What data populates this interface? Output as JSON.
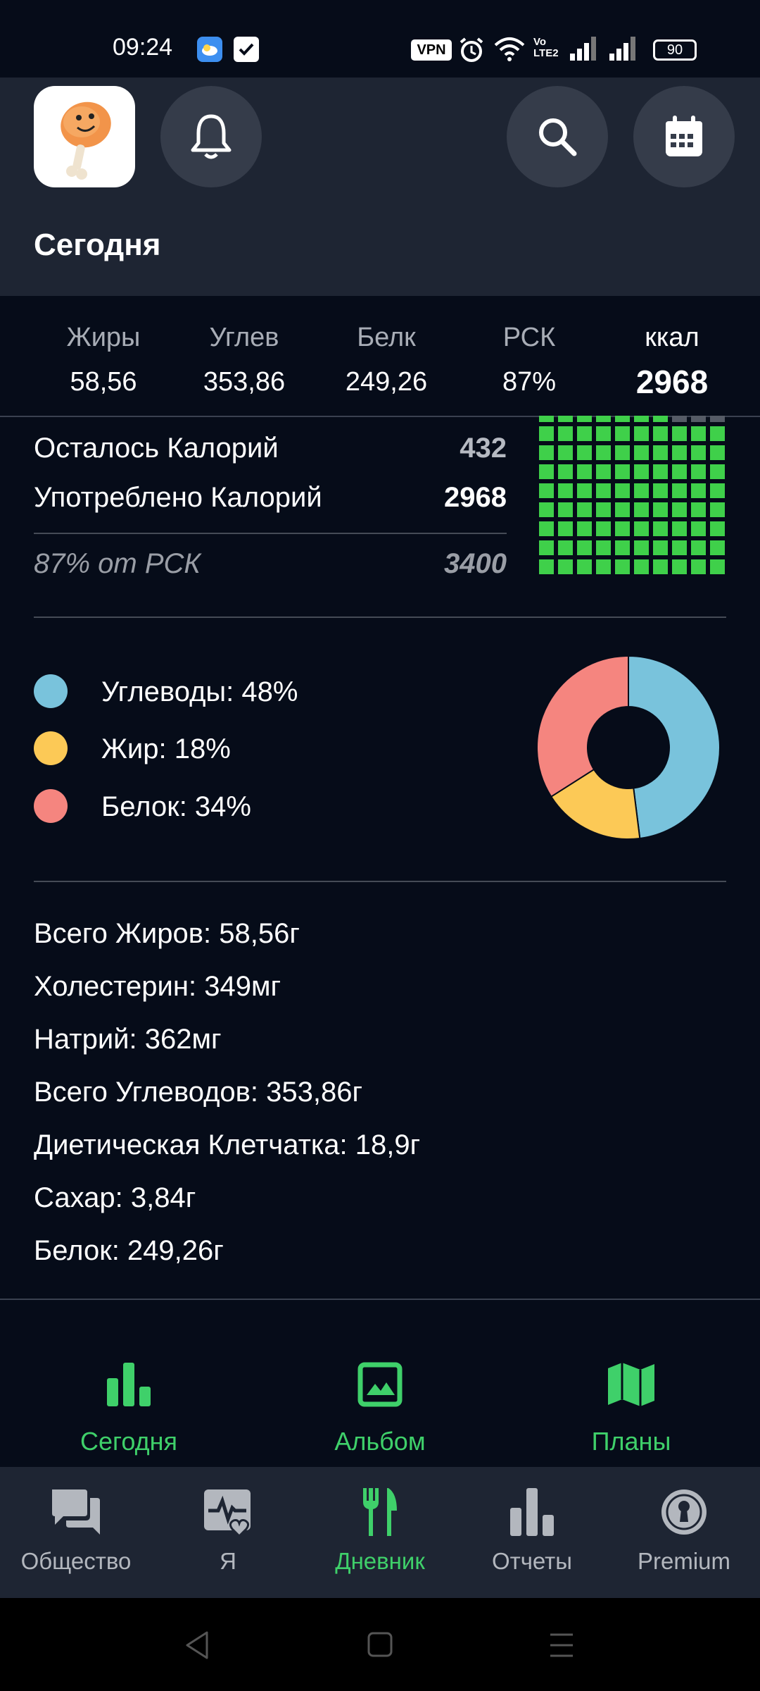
{
  "status_bar": {
    "time": "09:24",
    "vpn": "VPN",
    "battery": "90"
  },
  "header": {
    "title": "Сегодня"
  },
  "summary": {
    "columns": [
      {
        "label": "Жиры",
        "value": "58,56"
      },
      {
        "label": "Углев",
        "value": "353,86"
      },
      {
        "label": "Белк",
        "value": "249,26"
      },
      {
        "label": "РСК",
        "value": "87%"
      },
      {
        "label": "ккал",
        "value": "2968"
      }
    ]
  },
  "calories": {
    "remaining_label": "Осталось Калорий",
    "remaining_value": "432",
    "consumed_label": "Употреблено Калорий",
    "consumed_value": "2968",
    "rsk_label": "87% от РСК",
    "rsk_value": "3400",
    "grid_fill_fraction": 0.87
  },
  "chart_data": {
    "type": "pie",
    "categories": [
      "Углеводы",
      "Жир",
      "Белок"
    ],
    "values": [
      48,
      18,
      34
    ],
    "colors": [
      "#79c3dc",
      "#fcc956",
      "#f5857f"
    ]
  },
  "legend": [
    {
      "text": "Углеводы: 48%",
      "color": "#79c3dc"
    },
    {
      "text": "Жир: 18%",
      "color": "#fcc956"
    },
    {
      "text": "Белок: 34%",
      "color": "#f5857f"
    }
  ],
  "nutrients": [
    "Всего Жиров: 58,56г",
    "Холестерин: 349мг",
    "Натрий: 362мг",
    "Всего Углеводов: 353,86г",
    "Диетическая Клетчатка: 18,9г",
    "Сахар: 3,84г",
    "Белок: 249,26г"
  ],
  "sub_tabs": [
    {
      "label": "Сегодня",
      "icon": "bar-chart-icon"
    },
    {
      "label": "Альбом",
      "icon": "image-icon"
    },
    {
      "label": "Планы",
      "icon": "map-icon"
    }
  ],
  "bottom_nav": [
    {
      "label": "Общество",
      "icon": "chat-icon"
    },
    {
      "label": "Я",
      "icon": "health-icon"
    },
    {
      "label": "Дневник",
      "icon": "fork-knife-icon",
      "active": true
    },
    {
      "label": "Отчеты",
      "icon": "bar-chart-icon"
    },
    {
      "label": "Premium",
      "icon": "keyhole-badge-icon"
    }
  ],
  "colors": {
    "accent": "#3fd06a",
    "grid_green": "#3fd04a",
    "background": "#060c19",
    "header": "#1e2533"
  }
}
